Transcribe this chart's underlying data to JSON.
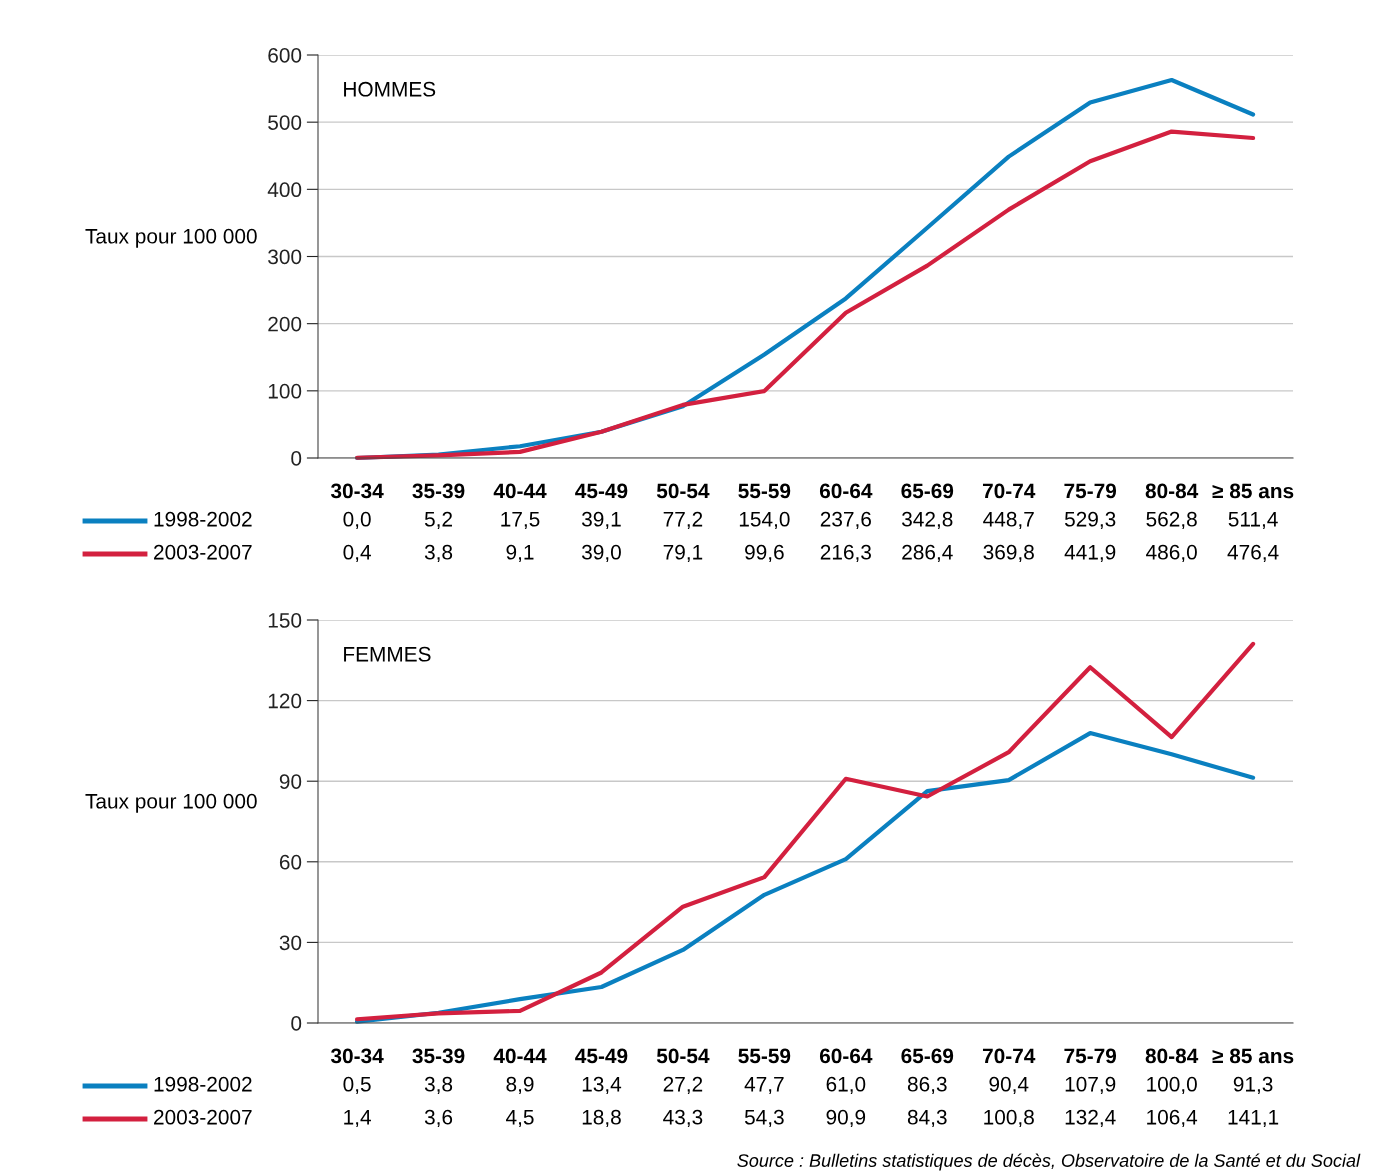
{
  "chart_data": [
    {
      "type": "line",
      "title": "HOMMES",
      "ylabel": "Taux pour 100 000",
      "categories": [
        "30-34",
        "35-39",
        "40-44",
        "45-49",
        "50-54",
        "55-59",
        "60-64",
        "65-69",
        "70-74",
        "75-79",
        "80-84",
        "≥ 85 ans"
      ],
      "series": [
        {
          "name": "1998-2002",
          "color": "#0a80c0",
          "values": [
            0.0,
            5.2,
            17.5,
            39.1,
            77.2,
            154.0,
            237.6,
            342.8,
            448.7,
            529.3,
            562.8,
            511.4
          ],
          "value_labels": [
            "0,0",
            "5,2",
            "17,5",
            "39,1",
            "77,2",
            "154,0",
            "237,6",
            "342,8",
            "448,7",
            "529,3",
            "562,8",
            "511,4"
          ]
        },
        {
          "name": "2003-2007",
          "color": "#d3203f",
          "values": [
            0.4,
            3.8,
            9.1,
            39.0,
            79.1,
            99.6,
            216.3,
            286.4,
            369.8,
            441.9,
            486.0,
            476.4
          ],
          "value_labels": [
            "0,4",
            "3,8",
            "9,1",
            "39,0",
            "79,1",
            "99,6",
            "216,3",
            "286,4",
            "369,8",
            "441,9",
            "486,0",
            "476,4"
          ]
        }
      ],
      "ylim": [
        0,
        600
      ],
      "yticks": [
        0,
        100,
        200,
        300,
        400,
        500,
        600
      ],
      "grid": "y",
      "legend": "bottom left"
    },
    {
      "type": "line",
      "title": "FEMMES",
      "ylabel": "Taux pour 100 000",
      "categories": [
        "30-34",
        "35-39",
        "40-44",
        "45-49",
        "50-54",
        "55-59",
        "60-64",
        "65-69",
        "70-74",
        "75-79",
        "80-84",
        "≥ 85 ans"
      ],
      "series": [
        {
          "name": "1998-2002",
          "color": "#0a80c0",
          "values": [
            0.5,
            3.8,
            8.9,
            13.4,
            27.2,
            47.7,
            61.0,
            86.3,
            90.4,
            107.9,
            100.0,
            91.3
          ],
          "value_labels": [
            "0,5",
            "3,8",
            "8,9",
            "13,4",
            "27,2",
            "47,7",
            "61,0",
            "86,3",
            "90,4",
            "107,9",
            "100,0",
            "91,3"
          ]
        },
        {
          "name": "2003-2007",
          "color": "#d3203f",
          "values": [
            1.4,
            3.6,
            4.5,
            18.8,
            43.3,
            54.3,
            90.9,
            84.3,
            100.8,
            132.4,
            106.4,
            141.1
          ],
          "value_labels": [
            "1,4",
            "3,6",
            "4,5",
            "18,8",
            "43,3",
            "54,3",
            "90,9",
            "84,3",
            "100,8",
            "132,4",
            "106,4",
            "141,1"
          ]
        }
      ],
      "ylim": [
        0,
        150
      ],
      "yticks": [
        0,
        30,
        60,
        90,
        120,
        150
      ],
      "grid": "y",
      "legend": "bottom left",
      "annotations": [
        "Source : Bulletins statistiques de décès, Observatoire de la Santé et du Social"
      ]
    }
  ]
}
